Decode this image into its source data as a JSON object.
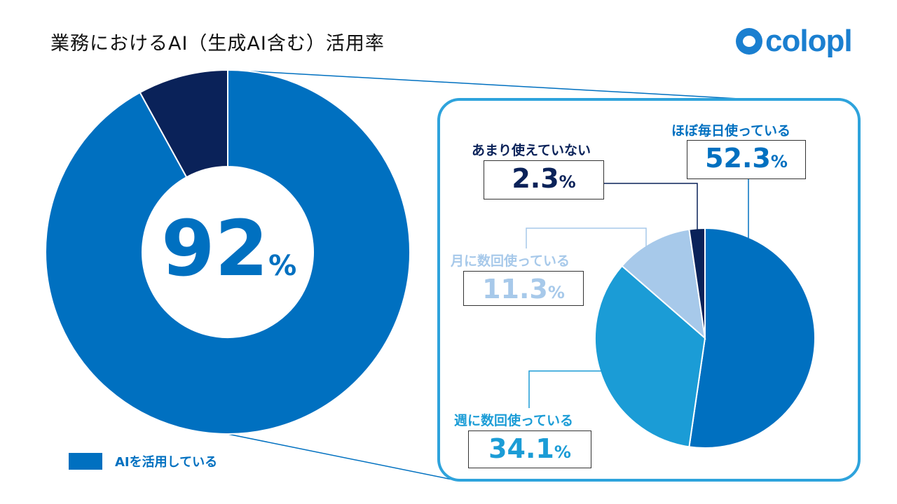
{
  "title": "業務におけるAI（生成AI含む）活用率",
  "logo": "colopl",
  "colors": {
    "primary": "#0070c0",
    "navy": "#0a2259",
    "mid": "#1b9cd6",
    "light": "#a7c9ea",
    "frame": "#2ea3dc"
  },
  "chart_data": [
    {
      "type": "pie",
      "subtype": "donut",
      "center_label": "92",
      "center_unit": "%",
      "slices": [
        {
          "name": "AIを活用している",
          "value": 92,
          "color": "#0070c0"
        },
        {
          "value": 8,
          "color": "#0a2259"
        }
      ],
      "legend": {
        "label": "AIを活用している",
        "placement": "bottom-left"
      }
    },
    {
      "type": "pie",
      "unit": "%",
      "slices": [
        {
          "name": "ほぼ毎日使っている",
          "value": 52.3,
          "label": "52.3",
          "color": "#0070c0"
        },
        {
          "name": "週に数回使っている",
          "value": 34.1,
          "label": "34.1",
          "color": "#1b9cd6"
        },
        {
          "name": "月に数回使っている",
          "value": 11.3,
          "label": "11.3",
          "color": "#a7c9ea"
        },
        {
          "name": "あまり使えていない",
          "value": 2.3,
          "label": "2.3",
          "color": "#0a2259"
        }
      ]
    }
  ]
}
